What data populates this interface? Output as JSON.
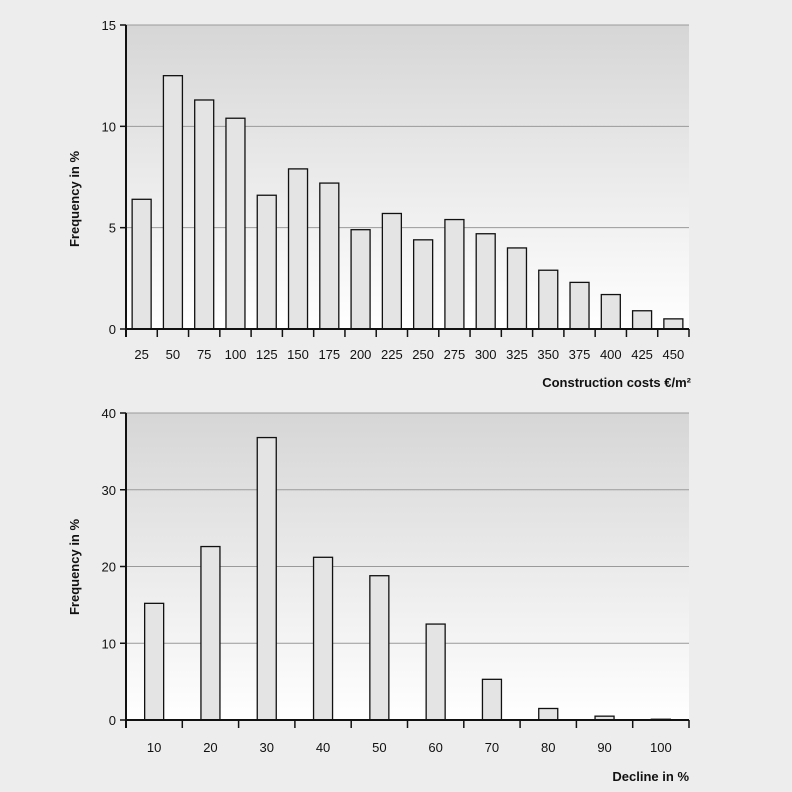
{
  "background_color": "#ededee",
  "plot_gradient": [
    "#d6d6d6",
    "#ffffff"
  ],
  "bar_color": "#e4e4e4",
  "chart_data": [
    {
      "type": "bar",
      "title": "",
      "xlabel": "Construction costs €/m²",
      "ylabel": "Frequency in %",
      "categories": [
        "25",
        "50",
        "75",
        "100",
        "125",
        "150",
        "175",
        "200",
        "225",
        "250",
        "275",
        "300",
        "325",
        "350",
        "375",
        "400",
        "425",
        "450"
      ],
      "values": [
        6.4,
        12.5,
        11.3,
        10.4,
        6.6,
        7.9,
        7.2,
        4.9,
        5.7,
        4.4,
        5.4,
        4.7,
        4.0,
        2.9,
        2.3,
        1.7,
        0.9,
        0.5
      ],
      "ylim": [
        0,
        15
      ],
      "yticks": [
        0,
        5,
        10,
        15
      ],
      "grid": true
    },
    {
      "type": "bar",
      "title": "",
      "xlabel": "Decline in %",
      "ylabel": "Frequency in %",
      "categories": [
        "10",
        "20",
        "30",
        "40",
        "50",
        "60",
        "70",
        "80",
        "90",
        "100"
      ],
      "values": [
        15.2,
        22.6,
        36.8,
        21.2,
        18.8,
        12.5,
        5.3,
        1.5,
        0.5,
        0.1
      ],
      "ylim": [
        0,
        40
      ],
      "yticks": [
        0,
        10,
        20,
        30,
        40
      ],
      "grid": true
    }
  ]
}
